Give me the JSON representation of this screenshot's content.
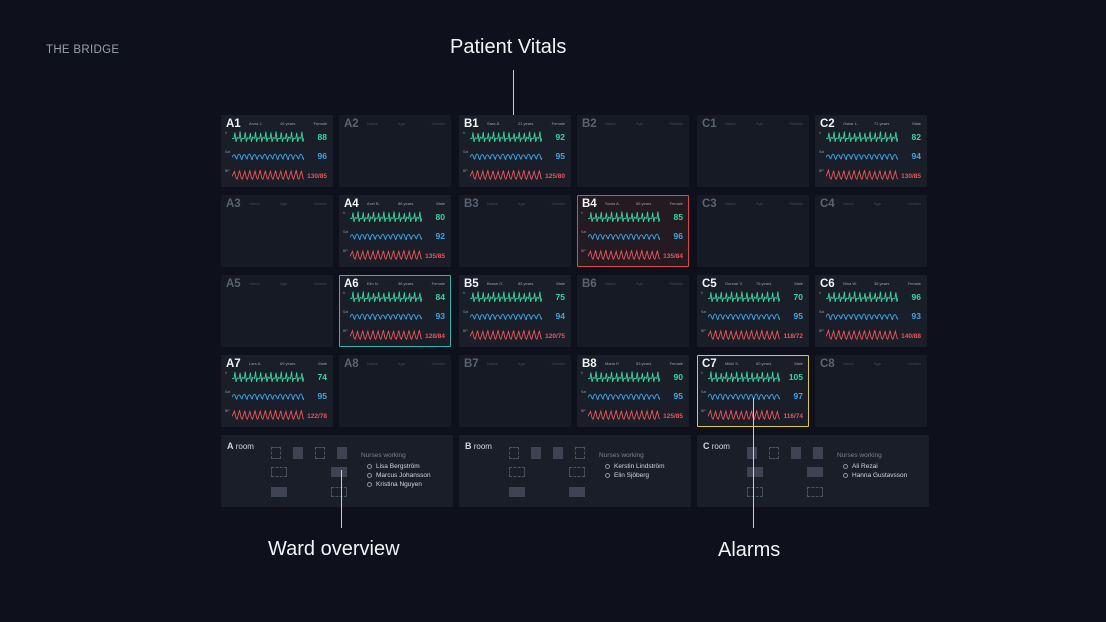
{
  "brand": "THE BRIDGE",
  "callouts": {
    "vitals": "Patient Vitals",
    "ward": "Ward overview",
    "alarms": "Alarms"
  },
  "placeholder": {
    "name": "Name",
    "age": "Age",
    "gender": "Gender"
  },
  "vital_labels": {
    "hr": "h",
    "o2": "Sat",
    "bp": "BP"
  },
  "colors": {
    "hr": "#33d6a0",
    "o2": "#3aa6e8",
    "bp": "#e8555a",
    "alarm_red": "#d94a4a",
    "alarm_teal": "#35b5b0",
    "alarm_yellow": "#d9c64a"
  },
  "beds": [
    {
      "id": "A1",
      "col": 0,
      "row": 0,
      "name": "Anna J.",
      "age": "45 years",
      "gender": "Female",
      "hr": "88",
      "o2": "96",
      "bp": "130/85"
    },
    {
      "id": "A2",
      "col": 1,
      "row": 0
    },
    {
      "id": "B1",
      "col": 2,
      "row": 0,
      "name": "Sara Å.",
      "age": "21 years",
      "gender": "Female",
      "hr": "92",
      "o2": "95",
      "bp": "125/80"
    },
    {
      "id": "B2",
      "col": 3,
      "row": 0
    },
    {
      "id": "C1",
      "col": 4,
      "row": 0
    },
    {
      "id": "C2",
      "col": 5,
      "row": 0,
      "name": "Oskar L.",
      "age": "71 years",
      "gender": "Male",
      "hr": "82",
      "o2": "94",
      "bp": "130/85"
    },
    {
      "id": "A3",
      "col": 0,
      "row": 1
    },
    {
      "id": "A4",
      "col": 1,
      "row": 1,
      "name": "Axel B.",
      "age": "86 years",
      "gender": "Male",
      "hr": "80",
      "o2": "92",
      "bp": "135/85"
    },
    {
      "id": "B3",
      "col": 2,
      "row": 1
    },
    {
      "id": "B4",
      "col": 3,
      "row": 1,
      "name": "Sonia A.",
      "age": "66 years",
      "gender": "Female",
      "hr": "85",
      "o2": "96",
      "bp": "135/84",
      "alarm": "red"
    },
    {
      "id": "C3",
      "col": 4,
      "row": 1
    },
    {
      "id": "C4",
      "col": 5,
      "row": 1
    },
    {
      "id": "A5",
      "col": 0,
      "row": 2
    },
    {
      "id": "A6",
      "col": 1,
      "row": 2,
      "name": "Elin N.",
      "age": "36 years",
      "gender": "Female",
      "hr": "84",
      "o2": "93",
      "bp": "128/84",
      "alarm": "teal"
    },
    {
      "id": "B5",
      "col": 2,
      "row": 2,
      "name": "Bosse O.",
      "age": "85 years",
      "gender": "Male",
      "hr": "75",
      "o2": "94",
      "bp": "120/75"
    },
    {
      "id": "B6",
      "col": 3,
      "row": 2
    },
    {
      "id": "C5",
      "col": 4,
      "row": 2,
      "name": "Gunnar V.",
      "age": "76 years",
      "gender": "Male",
      "hr": "70",
      "o2": "95",
      "bp": "118/72"
    },
    {
      "id": "C6",
      "col": 5,
      "row": 2,
      "name": "Nina W.",
      "age": "36 years",
      "gender": "Female",
      "hr": "96",
      "o2": "93",
      "bp": "140/88"
    },
    {
      "id": "A7",
      "col": 0,
      "row": 3,
      "name": "Lars A.",
      "age": "69 years",
      "gender": "Male",
      "hr": "74",
      "o2": "95",
      "bp": "122/78"
    },
    {
      "id": "A8",
      "col": 1,
      "row": 3
    },
    {
      "id": "B7",
      "col": 2,
      "row": 3
    },
    {
      "id": "B8",
      "col": 3,
      "row": 3,
      "name": "Maria P.",
      "age": "53 years",
      "gender": "Female",
      "hr": "90",
      "o2": "95",
      "bp": "125/85"
    },
    {
      "id": "C7",
      "col": 4,
      "row": 3,
      "name": "Mikki S.",
      "age": "60 years",
      "gender": "Male",
      "hr": "105",
      "o2": "97",
      "bp": "116/74",
      "alarm": "yellow"
    },
    {
      "id": "C8",
      "col": 5,
      "row": 3
    }
  ],
  "rooms": [
    {
      "letter": "A",
      "suffix": "room",
      "nurses_title": "Nurses working",
      "nurses": [
        "Lisa Bergström",
        "Marcus Johansson",
        "Kristina Nguyen"
      ]
    },
    {
      "letter": "B",
      "suffix": "room",
      "nurses_title": "Nurses working",
      "nurses": [
        "Kerstin Lindström",
        "Elin Sjöberg"
      ]
    },
    {
      "letter": "C",
      "suffix": "room",
      "nurses_title": "Nurses working",
      "nurses": [
        "Ali Rezai",
        "Hanna Gustavsson"
      ]
    }
  ]
}
